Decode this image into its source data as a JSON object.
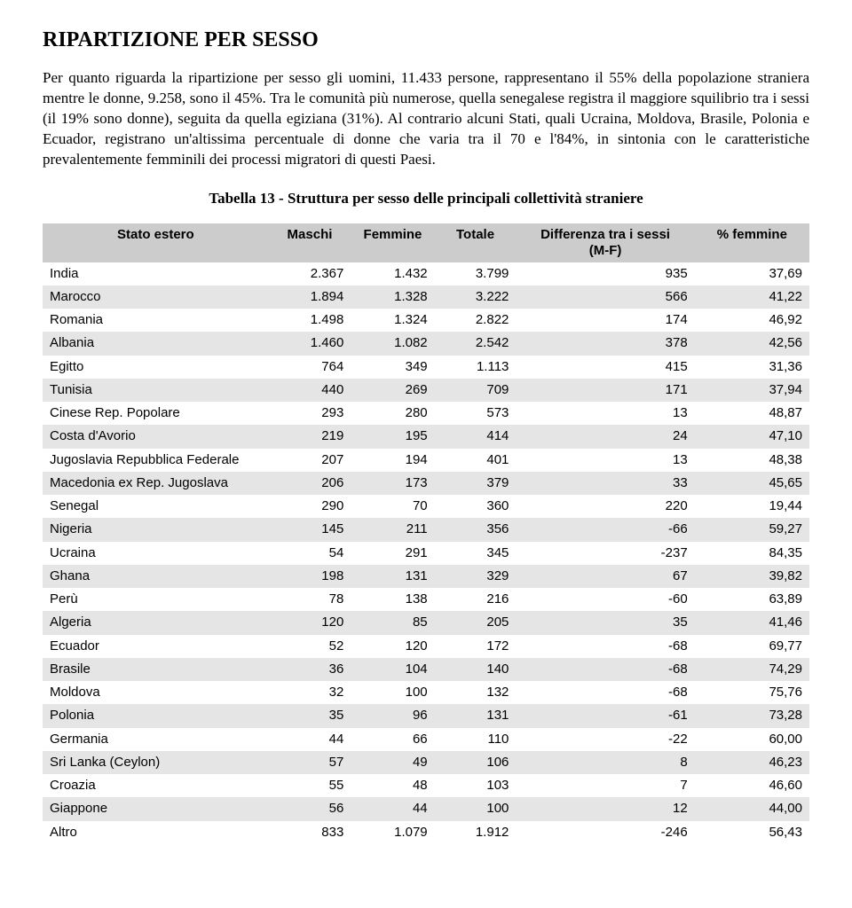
{
  "title": "RIPARTIZIONE PER SESSO",
  "paragraph": "Per quanto riguarda la ripartizione per sesso gli uomini, 11.433 persone, rappresentano il 55% della popolazione straniera mentre le donne, 9.258, sono il 45%. Tra le comunità più numerose, quella senegalese registra il maggiore squilibrio tra i sessi (il 19% sono donne), seguita da quella egiziana (31%). Al contrario alcuni Stati, quali Ucraina, Moldova, Brasile, Polonia e Ecuador, registrano un'altissima percentuale di donne che varia tra il 70 e l'84%, in sintonia con le caratteristiche prevalentemente femminili dei processi migratori di questi Paesi.",
  "table_caption": "Tabella 13 - Struttura per sesso delle principali collettività straniere",
  "table": {
    "columns": {
      "state": "Stato estero",
      "male": "Maschi",
      "female": "Femmine",
      "total": "Totale",
      "diff": "Differenza tra i sessi\n(M-F)",
      "pct": "% femmine"
    },
    "header_bg": "#cccccc",
    "alt_row_bg": "#e5e5e5",
    "rows": [
      {
        "state": "India",
        "male": "2.367",
        "female": "1.432",
        "total": "3.799",
        "diff": "935",
        "pct": "37,69"
      },
      {
        "state": "Marocco",
        "male": "1.894",
        "female": "1.328",
        "total": "3.222",
        "diff": "566",
        "pct": "41,22"
      },
      {
        "state": "Romania",
        "male": "1.498",
        "female": "1.324",
        "total": "2.822",
        "diff": "174",
        "pct": "46,92"
      },
      {
        "state": "Albania",
        "male": "1.460",
        "female": "1.082",
        "total": "2.542",
        "diff": "378",
        "pct": "42,56"
      },
      {
        "state": "Egitto",
        "male": "764",
        "female": "349",
        "total": "1.113",
        "diff": "415",
        "pct": "31,36"
      },
      {
        "state": "Tunisia",
        "male": "440",
        "female": "269",
        "total": "709",
        "diff": "171",
        "pct": "37,94"
      },
      {
        "state": "Cinese Rep. Popolare",
        "male": "293",
        "female": "280",
        "total": "573",
        "diff": "13",
        "pct": "48,87"
      },
      {
        "state": "Costa d'Avorio",
        "male": "219",
        "female": "195",
        "total": "414",
        "diff": "24",
        "pct": "47,10"
      },
      {
        "state": "Jugoslavia Repubblica Federale",
        "male": "207",
        "female": "194",
        "total": "401",
        "diff": "13",
        "pct": "48,38"
      },
      {
        "state": "Macedonia ex Rep. Jugoslava",
        "male": "206",
        "female": "173",
        "total": "379",
        "diff": "33",
        "pct": "45,65"
      },
      {
        "state": "Senegal",
        "male": "290",
        "female": "70",
        "total": "360",
        "diff": "220",
        "pct": "19,44"
      },
      {
        "state": "Nigeria",
        "male": "145",
        "female": "211",
        "total": "356",
        "diff": "-66",
        "pct": "59,27"
      },
      {
        "state": "Ucraina",
        "male": "54",
        "female": "291",
        "total": "345",
        "diff": "-237",
        "pct": "84,35"
      },
      {
        "state": "Ghana",
        "male": "198",
        "female": "131",
        "total": "329",
        "diff": "67",
        "pct": "39,82"
      },
      {
        "state": "Perù",
        "male": "78",
        "female": "138",
        "total": "216",
        "diff": "-60",
        "pct": "63,89"
      },
      {
        "state": "Algeria",
        "male": "120",
        "female": "85",
        "total": "205",
        "diff": "35",
        "pct": "41,46"
      },
      {
        "state": "Ecuador",
        "male": "52",
        "female": "120",
        "total": "172",
        "diff": "-68",
        "pct": "69,77"
      },
      {
        "state": "Brasile",
        "male": "36",
        "female": "104",
        "total": "140",
        "diff": "-68",
        "pct": "74,29"
      },
      {
        "state": "Moldova",
        "male": "32",
        "female": "100",
        "total": "132",
        "diff": "-68",
        "pct": "75,76"
      },
      {
        "state": "Polonia",
        "male": "35",
        "female": "96",
        "total": "131",
        "diff": "-61",
        "pct": "73,28"
      },
      {
        "state": "Germania",
        "male": "44",
        "female": "66",
        "total": "110",
        "diff": "-22",
        "pct": "60,00"
      },
      {
        "state": "Sri Lanka (Ceylon)",
        "male": "57",
        "female": "49",
        "total": "106",
        "diff": "8",
        "pct": "46,23"
      },
      {
        "state": "Croazia",
        "male": "55",
        "female": "48",
        "total": "103",
        "diff": "7",
        "pct": "46,60"
      },
      {
        "state": "Giappone",
        "male": "56",
        "female": "44",
        "total": "100",
        "diff": "12",
        "pct": "44,00"
      },
      {
        "state": "Altro",
        "male": "833",
        "female": "1.079",
        "total": "1.912",
        "diff": "-246",
        "pct": "56,43"
      }
    ]
  }
}
